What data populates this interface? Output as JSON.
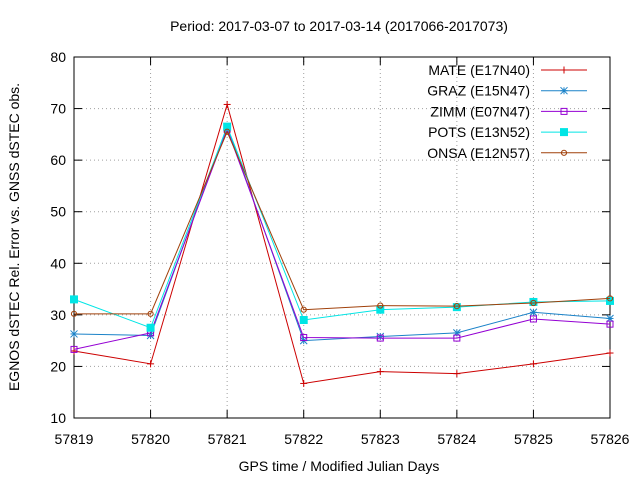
{
  "chart_data": {
    "type": "line",
    "title": "Period: 2017-03-07 to 2017-03-14 (2017066-2017073)",
    "xlabel": "GPS time / Modified Julian Days",
    "ylabel": "EGNOS dSTEC Rel. Error vs. GNSS dSTEC obs.",
    "xlim": [
      57819,
      57826
    ],
    "ylim": [
      10,
      80
    ],
    "x": [
      57819,
      57820,
      57821,
      57822,
      57823,
      57824,
      57825,
      57826
    ],
    "xticks": [
      "57819",
      "57820",
      "57821",
      "57822",
      "57823",
      "57824",
      "57825",
      "57826"
    ],
    "yticks": [
      "10",
      "20",
      "30",
      "40",
      "50",
      "60",
      "70",
      "80"
    ],
    "grid": true,
    "legend_position": "top-right",
    "series": [
      {
        "name": "MATE (E17N40)",
        "color": "#cc0000",
        "marker": "plus",
        "values": [
          23.0,
          20.5,
          70.8,
          16.7,
          19.0,
          18.6,
          20.5,
          22.6
        ]
      },
      {
        "name": "GRAZ (E15N47)",
        "color": "#1a82c8",
        "marker": "asterisk",
        "values": [
          26.3,
          26.0,
          66.5,
          25.0,
          25.8,
          26.5,
          30.5,
          29.3
        ]
      },
      {
        "name": "ZIMM (E07N47)",
        "color": "#9400d3",
        "marker": "open-square",
        "values": [
          23.3,
          26.5,
          66.0,
          25.6,
          25.5,
          25.5,
          29.2,
          28.2
        ]
      },
      {
        "name": "POTS (E13N52)",
        "color": "#00e5e5",
        "marker": "filled-square",
        "values": [
          33.0,
          27.5,
          66.5,
          29.0,
          31.0,
          31.5,
          32.5,
          32.7
        ]
      },
      {
        "name": "ONSA (E12N57)",
        "color": "#a0400a",
        "marker": "open-circle",
        "values": [
          30.2,
          30.2,
          65.5,
          31.0,
          31.8,
          31.7,
          32.3,
          33.2
        ]
      }
    ]
  }
}
